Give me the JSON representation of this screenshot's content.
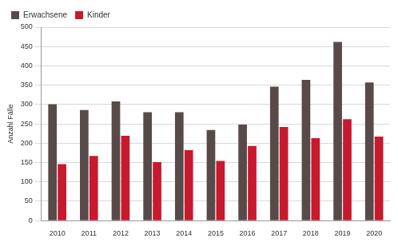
{
  "chart_data": {
    "type": "bar",
    "y_label": "Anzahl Fälle",
    "categories": [
      "2010",
      "2011",
      "2012",
      "2013",
      "2014",
      "2015",
      "2016",
      "2017",
      "2018",
      "2019",
      "2020"
    ],
    "series": [
      {
        "name": "Erwachsene",
        "color": "#594a4a",
        "values": [
          301,
          286,
          308,
          280,
          280,
          234,
          248,
          346,
          364,
          462,
          357
        ]
      },
      {
        "name": "Kinder",
        "color": "#c8192e",
        "values": [
          146,
          167,
          219,
          151,
          182,
          154,
          193,
          242,
          213,
          262,
          217
        ]
      }
    ],
    "ylim": [
      0,
      500
    ],
    "yticks": [
      0,
      50,
      100,
      150,
      200,
      250,
      300,
      350,
      400,
      450,
      500
    ],
    "grid": true,
    "legend": "top-left"
  }
}
